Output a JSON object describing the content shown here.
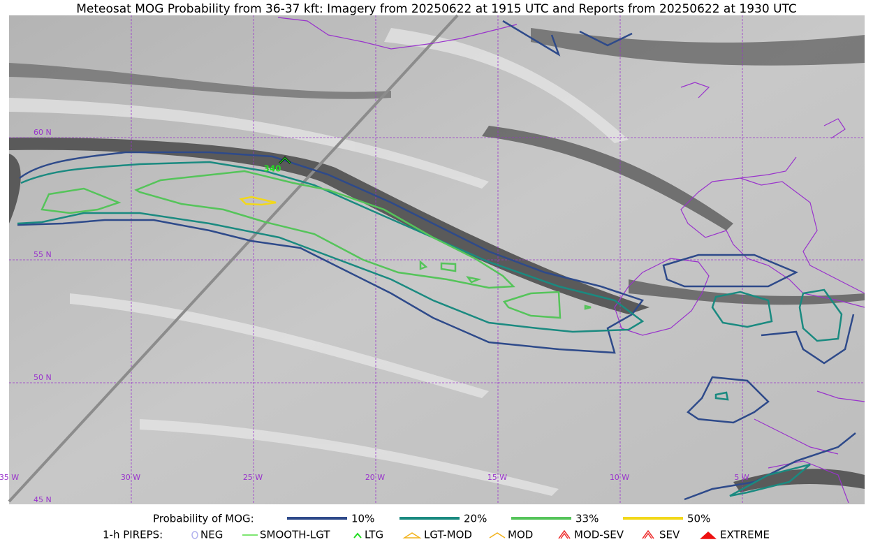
{
  "title": "Meteosat MOG Probability from 36-37 kft: Imagery from 20250622 at 1915 UTC and Reports from 20250622 at 1930 UTC",
  "lat_labels": [
    "60 N",
    "55 N",
    "50 N",
    "45 N"
  ],
  "lon_labels": [
    "35 W",
    "30 W",
    "25 W",
    "20 W",
    "15 W",
    "10 W",
    "5 W"
  ],
  "report_label": "340",
  "mog_legend": {
    "title": "Probability of MOG:",
    "items": [
      {
        "label": "10%",
        "color": "#2e4a8a"
      },
      {
        "label": "20%",
        "color": "#1a8a80"
      },
      {
        "label": "33%",
        "color": "#55c45a"
      },
      {
        "label": "50%",
        "color": "#f2d81a"
      }
    ]
  },
  "pirep_legend": {
    "title": "1-h PIREPS:",
    "items": [
      "NEG",
      "SMOOTH-LGT",
      "LTG",
      "LGT-MOD",
      "MOD",
      "MOD-SEV",
      "SEV",
      "EXTREME"
    ]
  }
}
